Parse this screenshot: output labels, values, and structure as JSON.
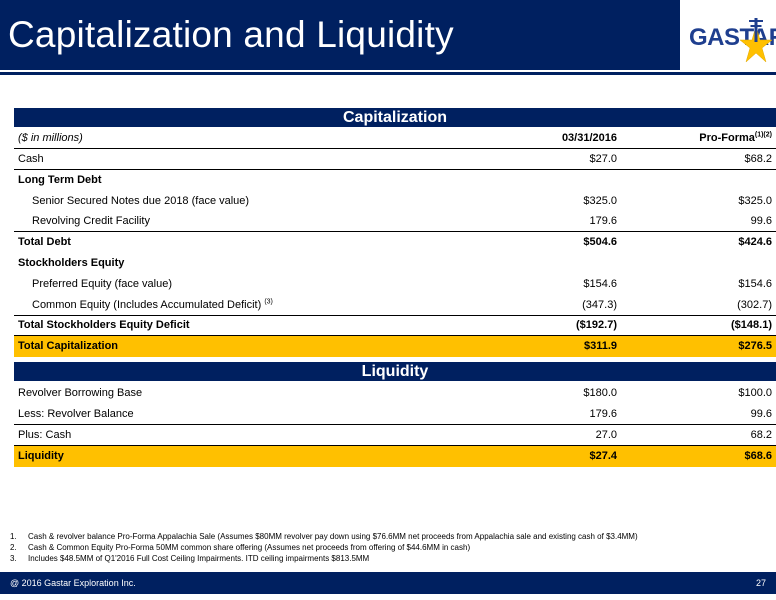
{
  "header": {
    "title": "Capitalization and Liquidity",
    "logo_text": "GASTAR",
    "brand_color": "#002060",
    "highlight_color": "#ffc000"
  },
  "capitalization": {
    "section_title": "Capitalization",
    "units_label": "($ in millions)",
    "col1_header": "03/31/2016",
    "col2_header": "Pro-Forma",
    "col2_sup": "(1)(2)",
    "rows": [
      {
        "label": "Cash",
        "c1": "$27.0",
        "c2": "$68.2"
      },
      {
        "label": "Long Term Debt",
        "c1": "",
        "c2": ""
      },
      {
        "label": "Senior Secured Notes due 2018 (face value)",
        "c1": "$325.0",
        "c2": "$325.0"
      },
      {
        "label": "Revolving Credit Facility",
        "c1": "179.6",
        "c2": "99.6"
      },
      {
        "label": "Total Debt",
        "c1": "$504.6",
        "c2": "$424.6"
      },
      {
        "label": "Stockholders Equity",
        "c1": "",
        "c2": ""
      },
      {
        "label": "Preferred Equity (face value)",
        "c1": "$154.6",
        "c2": "$154.6"
      },
      {
        "label": "Common Equity (Includes Accumulated Deficit)",
        "sup": "(3)",
        "c1": "(347.3)",
        "c2": "(302.7)"
      },
      {
        "label": "Total Stockholders Equity Deficit",
        "c1": "($192.7)",
        "c2": "($148.1)"
      },
      {
        "label": "Total Capitalization",
        "c1": "$311.9",
        "c2": "$276.5"
      }
    ]
  },
  "liquidity": {
    "section_title": "Liquidity",
    "rows": [
      {
        "label": "Revolver Borrowing Base",
        "c1": "$180.0",
        "c2": "$100.0"
      },
      {
        "label": "Less: Revolver Balance",
        "c1": "179.6",
        "c2": "99.6"
      },
      {
        "label": "Plus: Cash",
        "c1": "27.0",
        "c2": "68.2"
      },
      {
        "label": "Liquidity",
        "c1": "$27.4",
        "c2": "$68.6"
      }
    ]
  },
  "footnotes": [
    {
      "num": "1.",
      "text": "Cash & revolver balance Pro-Forma Appalachia Sale (Assumes $80MM revolver pay down using $76.6MM net proceeds from Appalachia sale and existing cash of $3.4MM)"
    },
    {
      "num": "2.",
      "text": "Cash & Common Equity Pro-Forma 50MM common share offering (Assumes net proceeds from offering of $44.6MM in cash)"
    },
    {
      "num": "3.",
      "text": "Includes $48.5MM of Q1'2016 Full Cost Ceiling Impairments. ITD ceiling impairments $813.5MM"
    }
  ],
  "footer": {
    "copyright": "@ 2016 Gastar Exploration Inc.",
    "page_number": "27"
  }
}
